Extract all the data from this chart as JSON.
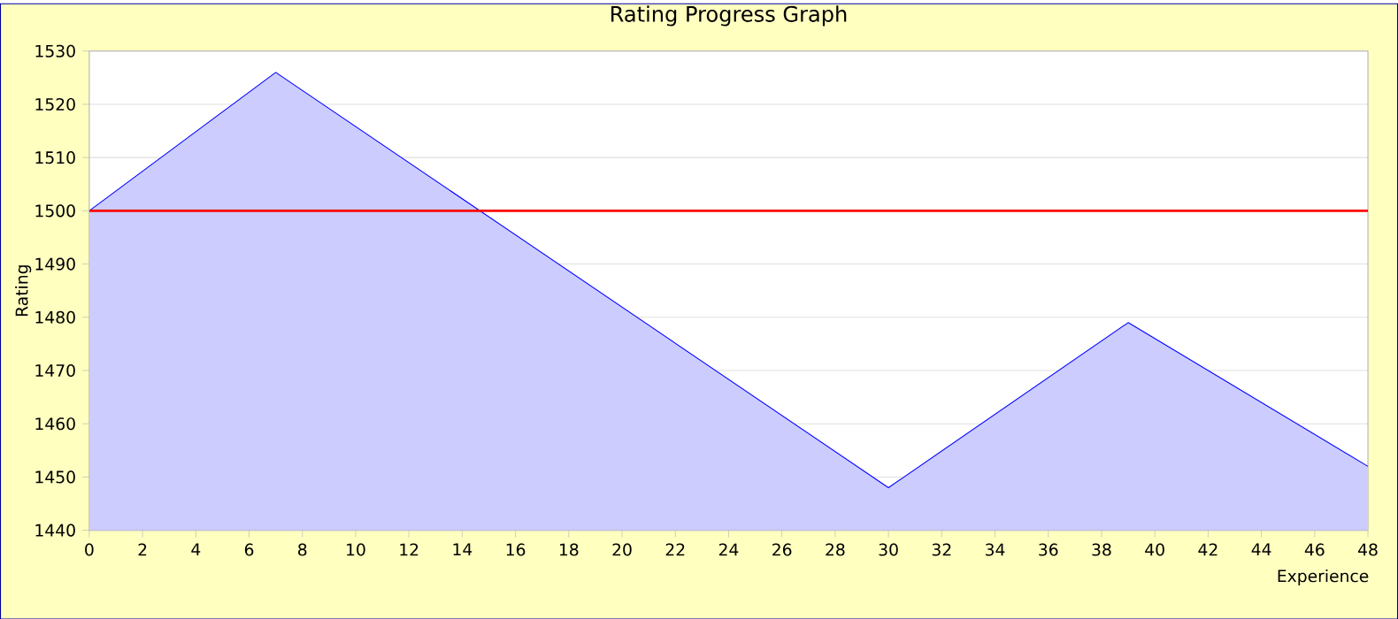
{
  "chart_data": {
    "type": "area",
    "title": "Rating Progress Graph",
    "xlabel": "Experience",
    "ylabel": "Rating",
    "x": [
      0,
      7,
      30,
      39,
      48
    ],
    "series": [
      {
        "color": "#0000ff",
        "values": [
          1500,
          1526,
          1448,
          1479,
          1452
        ]
      }
    ],
    "xlim": [
      0,
      48
    ],
    "xticks": [
      0,
      2,
      4,
      6,
      8,
      10,
      12,
      14,
      16,
      18,
      20,
      22,
      24,
      26,
      28,
      30,
      32,
      34,
      36,
      38,
      40,
      42,
      44,
      46,
      48
    ],
    "ylim": [
      1440,
      1530
    ],
    "yticks": [
      1440,
      1450,
      1460,
      1470,
      1480,
      1490,
      1500,
      1510,
      1520,
      1530
    ],
    "grid": "y",
    "ref_lines": [
      {
        "axis": "y",
        "value": 1500,
        "color": "#ff0000"
      }
    ]
  }
}
